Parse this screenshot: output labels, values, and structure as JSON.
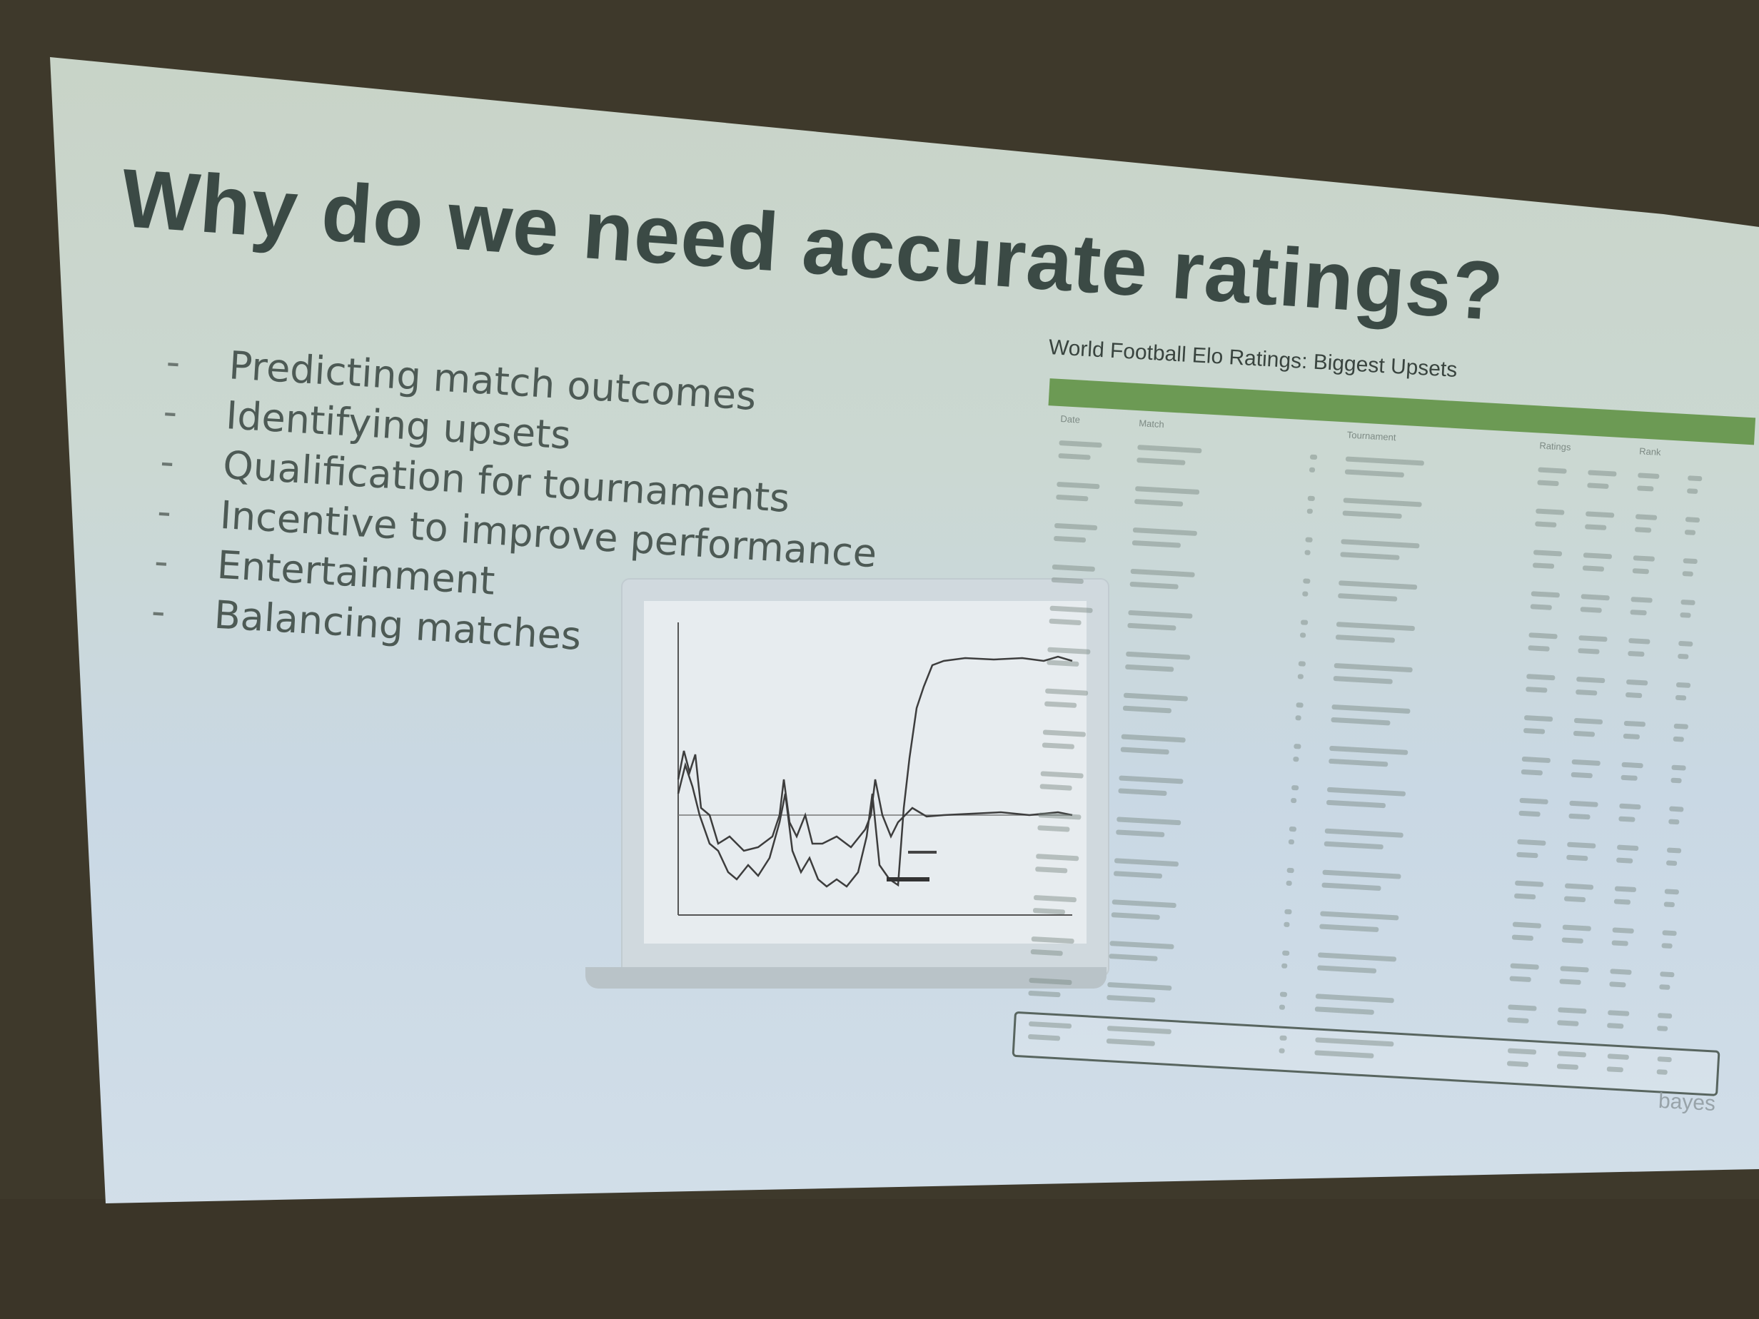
{
  "slide": {
    "title": "Why do we need accurate ratings?",
    "bullets": [
      "Predicting match outcomes",
      "Identifying upsets",
      "Qualification for tournaments",
      "Incentive to improve performance",
      "Entertainment",
      "Balancing matches"
    ],
    "bullet_marker": "-",
    "brand": "bayes"
  },
  "table": {
    "title": "World Football Elo Ratings: Biggest Upsets",
    "headers": [
      "Date",
      "Match",
      "Tournament",
      "Ratings",
      "Rank"
    ]
  },
  "colors": {
    "slide_background": "#cbd8d2",
    "title_text": "#3b4a45",
    "table_header_bar": "#6c9a54",
    "room_wall": "#3f3a2c"
  }
}
